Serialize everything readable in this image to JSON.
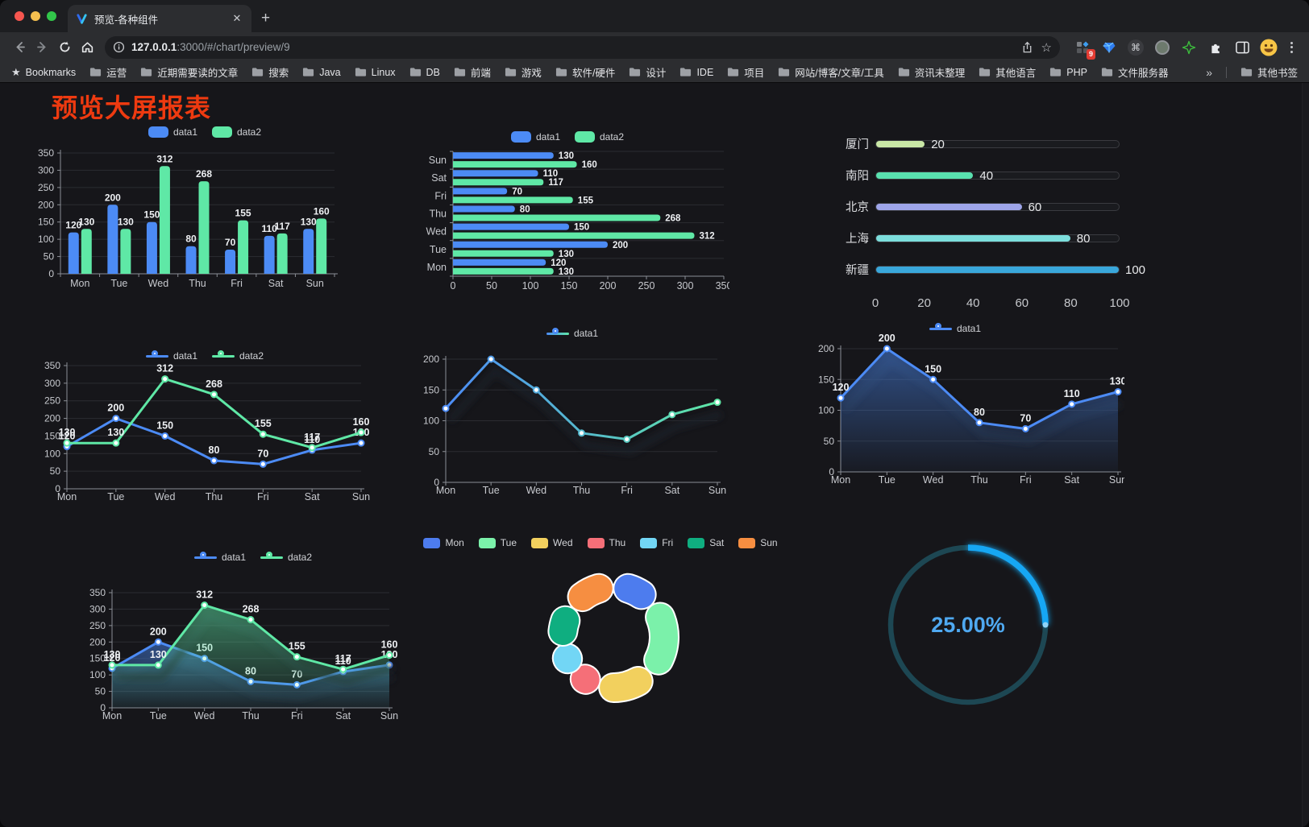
{
  "browser": {
    "tab": {
      "title": "预览-各种组件"
    },
    "url": {
      "host": "127.0.0.1",
      "rest": ":3000/#/chart/preview/9"
    },
    "bookmarks": {
      "leading": "Bookmarks",
      "folders": [
        "运营",
        "近期需要读的文章",
        "搜索",
        "Java",
        "Linux",
        "DB",
        "前端",
        "游戏",
        "软件/硬件",
        "设计",
        "IDE",
        "项目",
        "网站/博客/文章/工具",
        "资讯未整理",
        "其他语言",
        "PHP",
        "文件服务器"
      ],
      "overflow": "»",
      "other": "其他书签"
    },
    "extensions": {
      "badge": "9"
    }
  },
  "page": {
    "title": "预览大屏报表",
    "title_color": "#EE3A10"
  },
  "chart_data": [
    {
      "id": "bar-grouped",
      "type": "bar",
      "legend_position": "top",
      "grid": true,
      "categories": [
        "Mon",
        "Tue",
        "Wed",
        "Thu",
        "Fri",
        "Sat",
        "Sun"
      ],
      "series": [
        {
          "name": "data1",
          "color": "#4C8BF5",
          "values": [
            120,
            200,
            150,
            80,
            70,
            110,
            130
          ]
        },
        {
          "name": "data2",
          "color": "#5FE8A6",
          "values": [
            130,
            130,
            312,
            268,
            155,
            117,
            160
          ]
        }
      ],
      "ylim": [
        0,
        350
      ],
      "ytick_step": 50
    },
    {
      "id": "bar-horizontal",
      "type": "bar",
      "orientation": "horizontal",
      "legend_position": "top",
      "categories": [
        "Mon",
        "Tue",
        "Wed",
        "Thu",
        "Fri",
        "Sat",
        "Sun"
      ],
      "series": [
        {
          "name": "data1",
          "color": "#4C8BF5",
          "values": [
            120,
            200,
            150,
            80,
            70,
            110,
            130
          ]
        },
        {
          "name": "data2",
          "color": "#5FE8A6",
          "values": [
            130,
            130,
            312,
            268,
            155,
            117,
            160
          ]
        }
      ],
      "xlim": [
        0,
        350
      ],
      "xtick_step": 50
    },
    {
      "id": "progress",
      "type": "bar",
      "orientation": "horizontal-progress",
      "xlim": [
        0,
        100
      ],
      "xticks": [
        0,
        20,
        40,
        60,
        80,
        100
      ],
      "items": [
        {
          "label": "厦门",
          "value": 20,
          "color": "#C9E7A6"
        },
        {
          "label": "南阳",
          "value": 40,
          "color": "#59E1AF"
        },
        {
          "label": "北京",
          "value": 60,
          "color": "#9EA5E9"
        },
        {
          "label": "上海",
          "value": 80,
          "color": "#7CDEDC"
        },
        {
          "label": "新疆",
          "value": 100,
          "color": "#39A7DB"
        }
      ]
    },
    {
      "id": "line-two",
      "type": "line",
      "legend_position": "top",
      "categories": [
        "Mon",
        "Tue",
        "Wed",
        "Thu",
        "Fri",
        "Sat",
        "Sun"
      ],
      "series": [
        {
          "name": "data1",
          "color": "#4C8BF5",
          "values": [
            120,
            200,
            150,
            80,
            70,
            110,
            130
          ],
          "show_labels": true
        },
        {
          "name": "data2",
          "color": "#5FE8A6",
          "values": [
            130,
            130,
            312,
            268,
            155,
            117,
            160
          ],
          "show_labels": true
        }
      ],
      "ylim": [
        0,
        350
      ],
      "ytick_step": 50
    },
    {
      "id": "line-gradient",
      "type": "line",
      "legend_position": "top",
      "shadow": true,
      "categories": [
        "Mon",
        "Tue",
        "Wed",
        "Thu",
        "Fri",
        "Sat",
        "Sun"
      ],
      "series": [
        {
          "name": "data1",
          "color": "#4C8BF5",
          "gradient": [
            "#4C8BF5",
            "#5FE8A6"
          ],
          "values": [
            120,
            200,
            150,
            80,
            70,
            110,
            130
          ]
        }
      ],
      "ylim": [
        0,
        200
      ],
      "ytick_step": 50
    },
    {
      "id": "line-area-single",
      "type": "area",
      "legend_position": "top",
      "shadow": true,
      "categories": [
        "Mon",
        "Tue",
        "Wed",
        "Thu",
        "Fri",
        "Sat",
        "Sun"
      ],
      "series": [
        {
          "name": "data1",
          "color": "#4C8BF5",
          "values": [
            120,
            200,
            150,
            80,
            70,
            110,
            130
          ],
          "area": true,
          "show_labels": true
        }
      ],
      "ylim": [
        0,
        200
      ],
      "ytick_step": 50
    },
    {
      "id": "line-area-two",
      "type": "area",
      "legend_position": "top",
      "shadow": true,
      "categories": [
        "Mon",
        "Tue",
        "Wed",
        "Thu",
        "Fri",
        "Sat",
        "Sun"
      ],
      "series": [
        {
          "name": "data1",
          "color": "#4C8BF5",
          "values": [
            120,
            200,
            150,
            80,
            70,
            110,
            130
          ],
          "area": true,
          "show_labels": true
        },
        {
          "name": "data2",
          "color": "#5FE8A6",
          "values": [
            130,
            130,
            312,
            268,
            155,
            117,
            160
          ],
          "area": true,
          "show_labels": true
        }
      ],
      "ylim": [
        0,
        350
      ],
      "ytick_step": 50
    },
    {
      "id": "donut",
      "type": "pie",
      "legend_position": "top",
      "inner_radius_pct": 54,
      "items": [
        {
          "label": "Mon",
          "value": 120,
          "color": "#4D7CEE"
        },
        {
          "label": "Tue",
          "value": 200,
          "color": "#7BF1AA"
        },
        {
          "label": "Wed",
          "value": 150,
          "color": "#F2D05E"
        },
        {
          "label": "Thu",
          "value": 80,
          "color": "#F56F78"
        },
        {
          "label": "Fri",
          "value": 70,
          "color": "#72D6F5"
        },
        {
          "label": "Sat",
          "value": 110,
          "color": "#0FAE80"
        },
        {
          "label": "Sun",
          "value": 130,
          "color": "#F68E41"
        }
      ]
    },
    {
      "id": "gauge",
      "type": "gauge",
      "value": 25,
      "display": "25.00%",
      "min": 0,
      "max": 100,
      "color": "#19A7F4",
      "track_color": "#1D4753",
      "text_color": "#4FA9F1"
    }
  ]
}
